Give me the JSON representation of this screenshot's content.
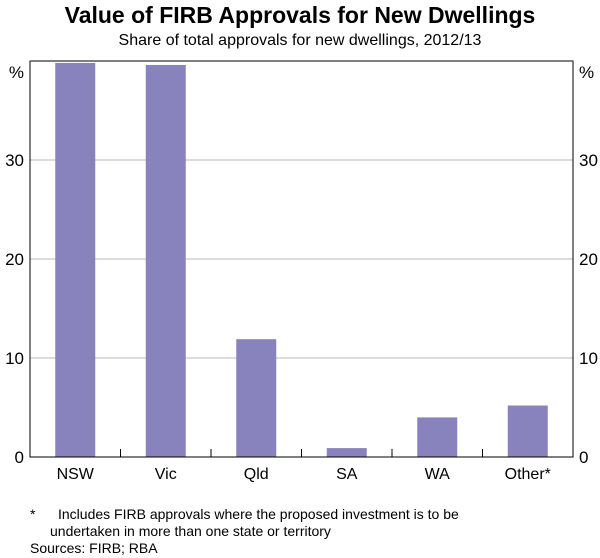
{
  "chart_data": {
    "type": "bar",
    "title": "Value of FIRB Approvals for New Dwellings",
    "subtitle": "Share of total approvals for new dwellings, 2012/13",
    "categories": [
      "NSW",
      "Vic",
      "Qld",
      "SA",
      "WA",
      "Other*"
    ],
    "values": [
      39.8,
      39.6,
      11.9,
      0.9,
      4.0,
      5.2
    ],
    "xlabel": "",
    "ylabel": "%",
    "ylim": [
      0,
      40
    ],
    "yticks": [
      0,
      10,
      20,
      30
    ],
    "grid": true,
    "bar_color": "#8883BD",
    "footnote_marker": "*",
    "footnote": "Includes FIRB approvals where the proposed investment is to be undertaken in more than one state or territory",
    "footnote_line1": "Includes FIRB approvals where the proposed investment is to be",
    "footnote_line2": "undertaken in more than one state or territory",
    "sources": "Sources: FIRB; RBA"
  }
}
